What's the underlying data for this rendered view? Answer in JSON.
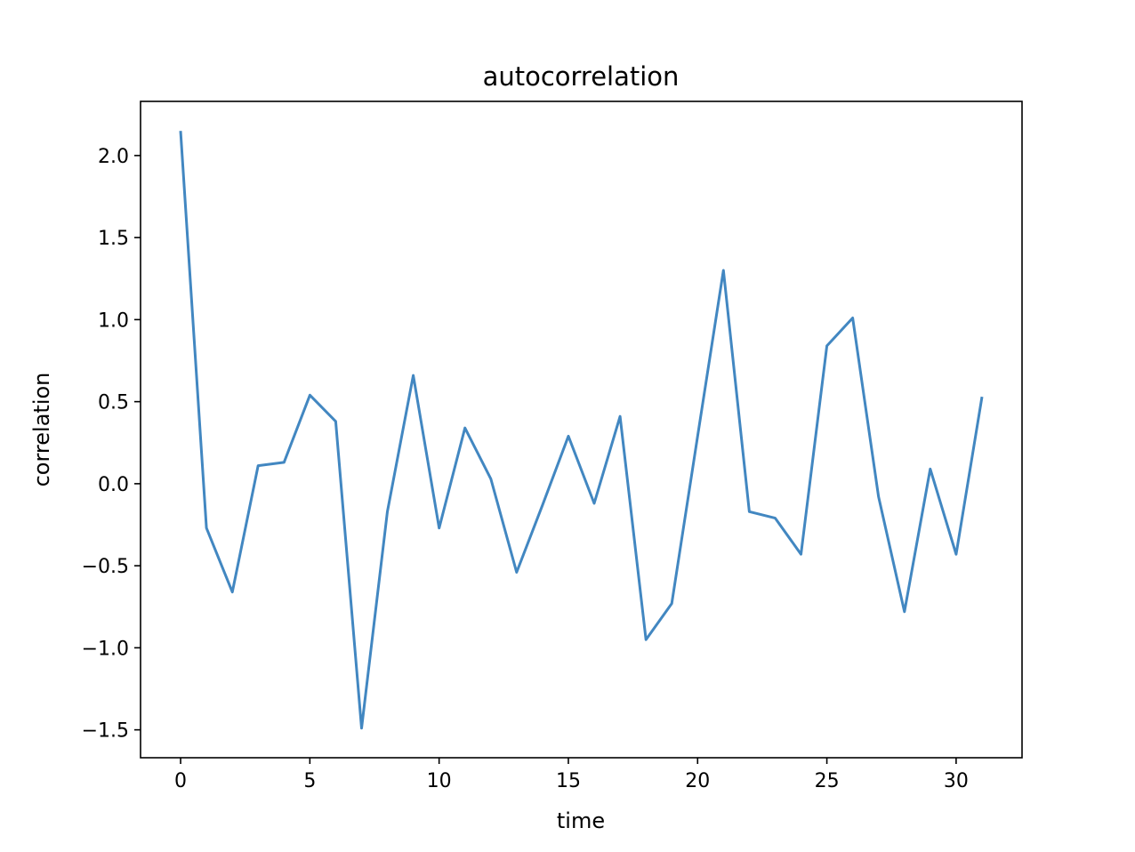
{
  "chart_data": {
    "type": "line",
    "title": "autocorrelation",
    "xlabel": "time",
    "ylabel": "correlation",
    "xlim": [
      -1.55,
      32.55
    ],
    "ylim": [
      -1.67,
      2.33
    ],
    "xticks": [
      0,
      5,
      10,
      15,
      20,
      25,
      30
    ],
    "xtick_labels": [
      "0",
      "5",
      "10",
      "15",
      "20",
      "25",
      "30"
    ],
    "yticks": [
      -1.5,
      -1.0,
      -0.5,
      0.0,
      0.5,
      1.0,
      1.5,
      2.0
    ],
    "ytick_labels": [
      "−1.5",
      "−1.0",
      "−0.5",
      "0.0",
      "0.5",
      "1.0",
      "1.5",
      "2.0"
    ],
    "grid": false,
    "series": [
      {
        "color": "#4287c1",
        "x": [
          0,
          1,
          2,
          3,
          4,
          5,
          6,
          7,
          8,
          9,
          10,
          11,
          12,
          13,
          14,
          15,
          16,
          17,
          18,
          19,
          20,
          21,
          22,
          23,
          24,
          25,
          26,
          27,
          28,
          29,
          30,
          31
        ],
        "values": [
          2.15,
          -0.27,
          -0.66,
          0.11,
          0.13,
          0.54,
          0.38,
          -1.49,
          -0.17,
          0.66,
          -0.27,
          0.34,
          0.03,
          -0.54,
          -0.13,
          0.29,
          -0.12,
          0.41,
          -0.95,
          -0.73,
          0.29,
          1.3,
          -0.17,
          -0.21,
          -0.43,
          0.84,
          1.01,
          -0.08,
          -0.78,
          0.09,
          -0.43,
          0.53
        ]
      }
    ]
  }
}
